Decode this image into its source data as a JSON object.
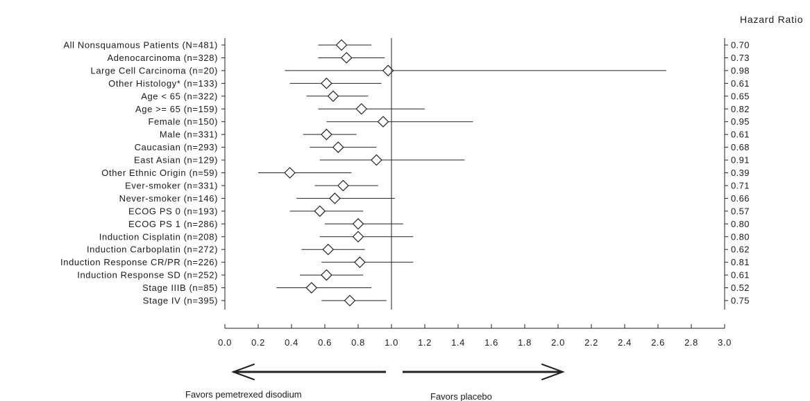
{
  "chart_data": {
    "type": "forest",
    "title": "Hazard Ratio",
    "xlim": [
      0.0,
      3.0
    ],
    "x_ticks": [
      "0.0",
      "0.2",
      "0.4",
      "0.6",
      "0.8",
      "1.0",
      "1.2",
      "1.4",
      "1.6",
      "1.8",
      "2.0",
      "2.2",
      "2.4",
      "2.6",
      "2.8",
      "3.0"
    ],
    "reference_line": 1.0,
    "rows": [
      {
        "label": "All Nonsquamous Patients (N=481)",
        "hr": 0.7,
        "hr_text": "0.70",
        "lower": 0.56,
        "upper": 0.88
      },
      {
        "label": "Adenocarcinoma (n=328)",
        "hr": 0.73,
        "hr_text": "0.73",
        "lower": 0.56,
        "upper": 0.96
      },
      {
        "label": "Large Cell Carcinoma (n=20)",
        "hr": 0.98,
        "hr_text": "0.98",
        "lower": 0.36,
        "upper": 2.65
      },
      {
        "label": "Other Histology* (n=133)",
        "hr": 0.61,
        "hr_text": "0.61",
        "lower": 0.39,
        "upper": 0.94
      },
      {
        "label": "Age < 65 (n=322)",
        "hr": 0.65,
        "hr_text": "0.65",
        "lower": 0.49,
        "upper": 0.86
      },
      {
        "label": "Age >= 65 (n=159)",
        "hr": 0.82,
        "hr_text": "0.82",
        "lower": 0.56,
        "upper": 1.2
      },
      {
        "label": "Female (n=150)",
        "hr": 0.95,
        "hr_text": "0.95",
        "lower": 0.61,
        "upper": 1.49
      },
      {
        "label": "Male (n=331)",
        "hr": 0.61,
        "hr_text": "0.61",
        "lower": 0.47,
        "upper": 0.79
      },
      {
        "label": "Caucasian (n=293)",
        "hr": 0.68,
        "hr_text": "0.68",
        "lower": 0.51,
        "upper": 0.91
      },
      {
        "label": "East Asian (n=129)",
        "hr": 0.91,
        "hr_text": "0.91",
        "lower": 0.57,
        "upper": 1.44
      },
      {
        "label": "Other Ethnic Origin (n=59)",
        "hr": 0.39,
        "hr_text": "0.39",
        "lower": 0.2,
        "upper": 0.76
      },
      {
        "label": "Ever-smoker (n=331)",
        "hr": 0.71,
        "hr_text": "0.71",
        "lower": 0.54,
        "upper": 0.92
      },
      {
        "label": "Never-smoker (n=146)",
        "hr": 0.66,
        "hr_text": "0.66",
        "lower": 0.43,
        "upper": 1.02
      },
      {
        "label": "ECOG PS 0 (n=193)",
        "hr": 0.57,
        "hr_text": "0.57",
        "lower": 0.39,
        "upper": 0.83
      },
      {
        "label": "ECOG PS 1 (n=286)",
        "hr": 0.8,
        "hr_text": "0.80",
        "lower": 0.6,
        "upper": 1.07
      },
      {
        "label": "Induction Cisplatin (n=208)",
        "hr": 0.8,
        "hr_text": "0.80",
        "lower": 0.57,
        "upper": 1.13
      },
      {
        "label": "Induction Carboplatin (n=272)",
        "hr": 0.62,
        "hr_text": "0.62",
        "lower": 0.46,
        "upper": 0.84
      },
      {
        "label": "Induction Response CR/PR (n=226)",
        "hr": 0.81,
        "hr_text": "0.81",
        "lower": 0.58,
        "upper": 1.13
      },
      {
        "label": "Induction Response SD (n=252)",
        "hr": 0.61,
        "hr_text": "0.61",
        "lower": 0.45,
        "upper": 0.83
      },
      {
        "label": "Stage IIIB (n=85)",
        "hr": 0.52,
        "hr_text": "0.52",
        "lower": 0.31,
        "upper": 0.88
      },
      {
        "label": "Stage IV (n=395)",
        "hr": 0.75,
        "hr_text": "0.75",
        "lower": 0.58,
        "upper": 0.97
      }
    ],
    "favors_left": "Favors pemetrexed disodium",
    "favors_right": "Favors placebo",
    "grid": false
  }
}
